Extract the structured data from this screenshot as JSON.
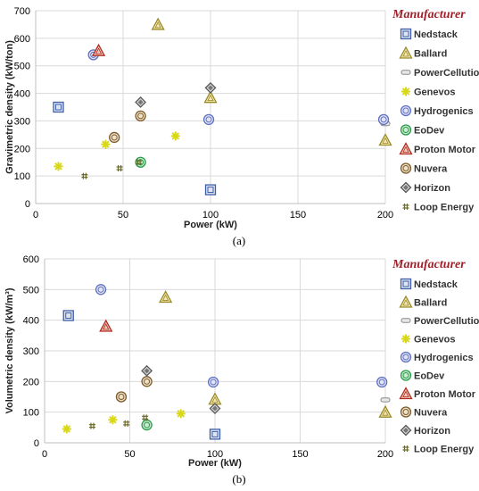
{
  "legend_title": "Manufacturer",
  "manufacturers": [
    {
      "name": "Nedstack",
      "symbol": "square",
      "color": "#3f5ea8"
    },
    {
      "name": "Ballard",
      "symbol": "triangle",
      "color": "#9a8a2a"
    },
    {
      "name": "PowerCellution",
      "symbol": "rect",
      "color": "#8a8a8a"
    },
    {
      "name": "Genevos",
      "symbol": "star",
      "color": "#d8d81a"
    },
    {
      "name": "Hydrogenics",
      "symbol": "circle",
      "color": "#6070c0"
    },
    {
      "name": "EoDev",
      "symbol": "circle2",
      "color": "#2a9a4a"
    },
    {
      "name": "Proton Motor",
      "symbol": "triangle2",
      "color": "#b02a20"
    },
    {
      "name": "Nuvera",
      "symbol": "circle3",
      "color": "#7a5a2a"
    },
    {
      "name": "Horizon",
      "symbol": "diamond",
      "color": "#555555"
    },
    {
      "name": "Loop Energy",
      "symbol": "hash",
      "color": "#6a6a2a"
    }
  ],
  "chart_data": [
    {
      "type": "scatter",
      "caption": "(a)",
      "xlabel": "Power (kW)",
      "ylabel": "Gravimetric density (kW/ton)",
      "xlim": [
        0,
        200
      ],
      "ylim": [
        0,
        700
      ],
      "xticks": [
        "0",
        "50",
        "100",
        "150",
        "200"
      ],
      "yticks": [
        "0",
        "100",
        "200",
        "300",
        "400",
        "500",
        "600",
        "700"
      ],
      "grid": true,
      "legend_position": "right",
      "series": [
        {
          "name": "Nedstack",
          "points": [
            [
              13,
              350
            ],
            [
              100,
              50
            ]
          ]
        },
        {
          "name": "Ballard",
          "points": [
            [
              70,
              650
            ],
            [
              100,
              385
            ],
            [
              200,
              230
            ]
          ]
        },
        {
          "name": "PowerCellution",
          "points": [
            [
              200,
              290
            ]
          ]
        },
        {
          "name": "Genevos",
          "points": [
            [
              13,
              135
            ],
            [
              40,
              215
            ],
            [
              80,
              245
            ]
          ]
        },
        {
          "name": "Hydrogenics",
          "points": [
            [
              33,
              540
            ],
            [
              99,
              305
            ],
            [
              199,
              305
            ]
          ]
        },
        {
          "name": "EoDev",
          "points": [
            [
              60,
              150
            ]
          ]
        },
        {
          "name": "Proton Motor",
          "points": [
            [
              36,
              555
            ]
          ]
        },
        {
          "name": "Nuvera",
          "points": [
            [
              45,
              240
            ],
            [
              60,
              318
            ]
          ]
        },
        {
          "name": "Horizon",
          "points": [
            [
              60,
              368
            ],
            [
              100,
              420
            ]
          ]
        },
        {
          "name": "Loop Energy",
          "points": [
            [
              28,
              100
            ],
            [
              48,
              128
            ],
            [
              59,
              150
            ]
          ]
        }
      ]
    },
    {
      "type": "scatter",
      "caption": "(b)",
      "xlabel": "Power (kW)",
      "ylabel": "Volumetric density (kW/m³)",
      "xlim": [
        0,
        200
      ],
      "ylim": [
        0,
        600
      ],
      "xticks": [
        "0",
        "50",
        "100",
        "150",
        "200"
      ],
      "yticks": [
        "0",
        "100",
        "200",
        "300",
        "400",
        "500",
        "600"
      ],
      "grid": true,
      "legend_position": "right",
      "series": [
        {
          "name": "Nedstack",
          "points": [
            [
              14,
              415
            ],
            [
              100,
              28
            ]
          ]
        },
        {
          "name": "Ballard",
          "points": [
            [
              71,
              475
            ],
            [
              100,
              142
            ],
            [
              200,
              100
            ]
          ]
        },
        {
          "name": "PowerCellution",
          "points": [
            [
              200,
              140
            ]
          ]
        },
        {
          "name": "Genevos",
          "points": [
            [
              13,
              45
            ],
            [
              40,
              75
            ],
            [
              80,
              95
            ]
          ]
        },
        {
          "name": "Hydrogenics",
          "points": [
            [
              33,
              500
            ],
            [
              99,
              198
            ],
            [
              198,
              198
            ]
          ]
        },
        {
          "name": "EoDev",
          "points": [
            [
              60,
              58
            ]
          ]
        },
        {
          "name": "Proton Motor",
          "points": [
            [
              36,
              380
            ]
          ]
        },
        {
          "name": "Nuvera",
          "points": [
            [
              45,
              150
            ],
            [
              60,
              200
            ]
          ]
        },
        {
          "name": "Horizon",
          "points": [
            [
              60,
              235
            ],
            [
              100,
              112
            ]
          ]
        },
        {
          "name": "Loop Energy",
          "points": [
            [
              28,
              55
            ],
            [
              48,
              63
            ],
            [
              59,
              82
            ]
          ]
        }
      ]
    }
  ]
}
